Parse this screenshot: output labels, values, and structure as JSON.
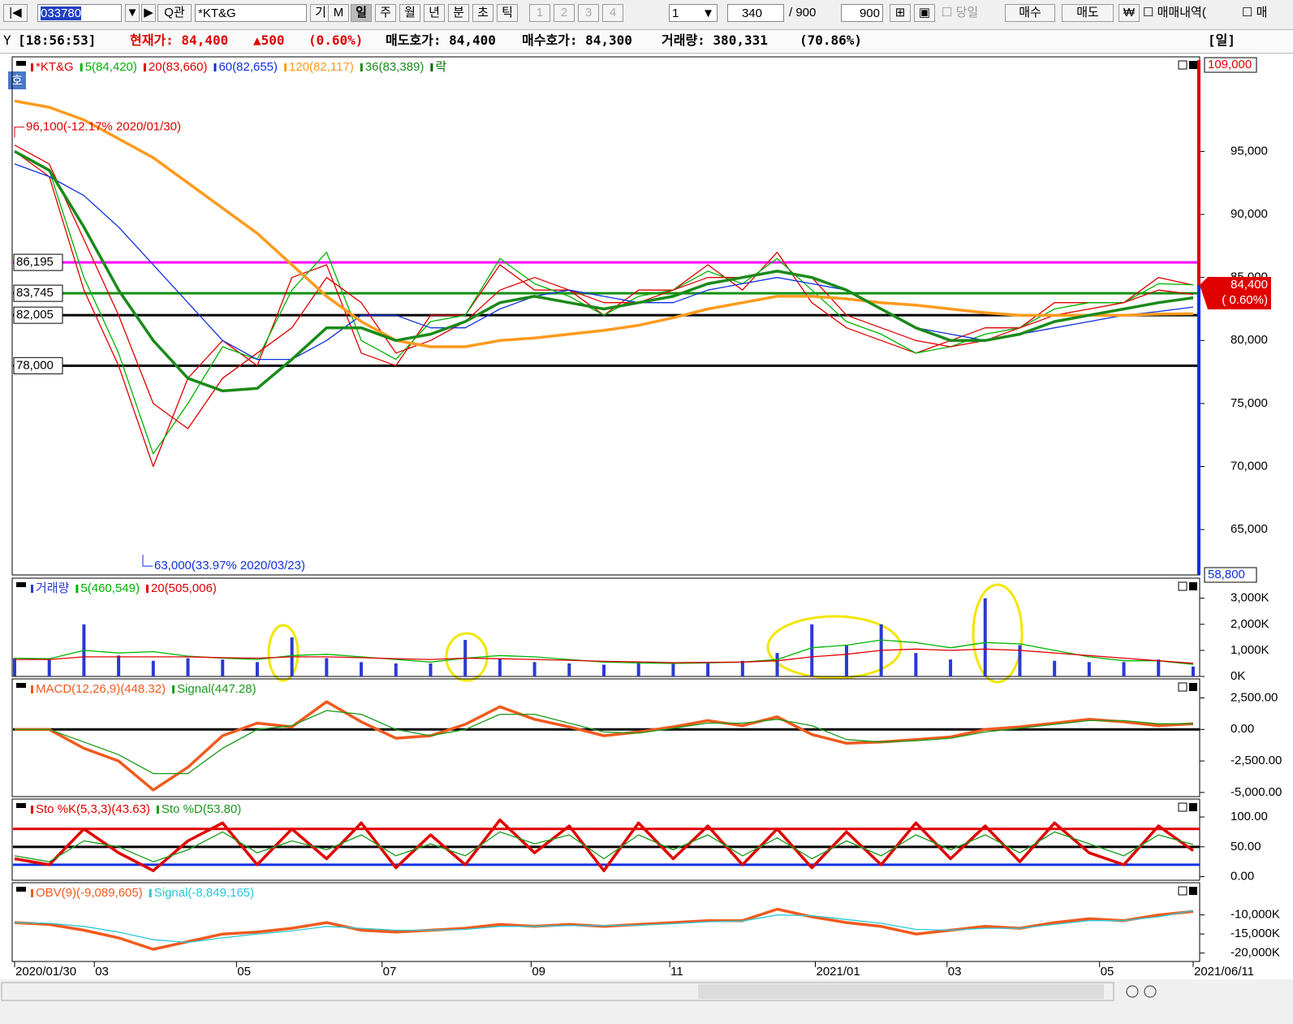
{
  "toolbar": {
    "code": "033780",
    "name": "*KT&G",
    "search": "관",
    "buttons": [
      "기",
      "M",
      "일",
      "주",
      "월",
      "년",
      "분",
      "초",
      "틱",
      "1",
      "2",
      "3",
      "4"
    ],
    "period": "1",
    "count": "340",
    "total": "/ 900",
    "total_box": "900",
    "today": "당일",
    "buy": "매수",
    "sell": "매도",
    "won": "₩",
    "history": "매매내역(",
    "history2": "매"
  },
  "info": {
    "time": "[18:56:53]",
    "price": "현재가: 84,400",
    "change": "▲500",
    "change_pct": "(0.60%)",
    "ask": "매도호가: 84,400",
    "bid": "매수호가: 84,300",
    "volume": "거래량: 380,331",
    "volume_pct": "(70.86%)",
    "period": "[일]"
  },
  "side_button": "호",
  "chart_data": {
    "type": "stock",
    "x": [
      0,
      10,
      20,
      30,
      40,
      50,
      60,
      70,
      80,
      90,
      100,
      110,
      120,
      130,
      140,
      150,
      160,
      170,
      180,
      190,
      200,
      210,
      220,
      230,
      240,
      250,
      260,
      270,
      280,
      290,
      300,
      310,
      320,
      330,
      340
    ],
    "xlim": [
      0,
      340
    ],
    "xticks": [
      {
        "value": 0,
        "label": "2020/01/30"
      },
      {
        "value": 23,
        "label": "03"
      },
      {
        "value": 64,
        "label": "05"
      },
      {
        "value": 106,
        "label": "07"
      },
      {
        "value": 149,
        "label": "09"
      },
      {
        "value": 189,
        "label": "11"
      },
      {
        "value": 231,
        "label": "2021/01"
      },
      {
        "value": 269,
        "label": "03"
      },
      {
        "value": 313,
        "label": "05"
      },
      {
        "value": 340,
        "label": "2021/06/11"
      }
    ],
    "panels": [
      {
        "type": "line",
        "ylim": [
          61400,
          102500
        ],
        "yticks": [
          {
            "value": 65000,
            "label": "65,000"
          },
          {
            "value": 70000,
            "label": "70,000"
          },
          {
            "value": 75000,
            "label": "75,000"
          },
          {
            "value": 80000,
            "label": "80,000"
          },
          {
            "value": 85000,
            "label": "85,000"
          },
          {
            "value": 90000,
            "label": "90,000"
          },
          {
            "value": 95000,
            "label": "95,000"
          }
        ],
        "range_labels": {
          "max": "109,000",
          "min": "58,800"
        },
        "series": [
          {
            "name": "*KT&G",
            "color": "#e00000",
            "values": [
              95000,
              93000,
              84000,
              78000,
              70000,
              77000,
              80000,
              78000,
              85000,
              86000,
              79000,
              78000,
              82000,
              82000,
              86000,
              84000,
              84000,
              82000,
              84000,
              84000,
              86000,
              84000,
              87000,
              83000,
              81000,
              80000,
              79000,
              80000,
              81000,
              81000,
              83000,
              83000,
              83000,
              85000,
              84400
            ]
          },
          {
            "name": "5(84,420)",
            "color": "#00b400",
            "values": [
              95000,
              93500,
              85000,
              79000,
              71000,
              75000,
              79500,
              78500,
              84000,
              87000,
              80000,
              78500,
              81500,
              82000,
              86500,
              84500,
              83500,
              82000,
              83500,
              84000,
              85500,
              84500,
              86500,
              84000,
              81500,
              80500,
              79000,
              79500,
              80500,
              81000,
              82500,
              83000,
              83000,
              84500,
              84420
            ]
          },
          {
            "name": "20(83,660)",
            "color": "#e00000",
            "values": [
              95500,
              94000,
              88000,
              82000,
              75000,
              73000,
              77000,
              79000,
              81000,
              85000,
              83000,
              79000,
              80000,
              81500,
              84000,
              85000,
              84000,
              83000,
              83000,
              84000,
              85000,
              85000,
              85500,
              85000,
              82000,
              81000,
              80000,
              79500,
              80000,
              81000,
              82000,
              82500,
              83000,
              84000,
              83660
            ]
          },
          {
            "name": "60(82,655)",
            "color": "#1030e0",
            "values": [
              94000,
              93000,
              91500,
              89000,
              86000,
              83000,
              80000,
              78500,
              78500,
              80000,
              82000,
              82000,
              81000,
              81000,
              82500,
              83500,
              84000,
              83500,
              83000,
              83000,
              84000,
              84500,
              85000,
              84500,
              84000,
              82500,
              81000,
              80500,
              80000,
              80500,
              81000,
              81500,
              82000,
              82300,
              82655
            ]
          },
          {
            "name": "120(82,117)",
            "color": "#ff9a1e",
            "thick": true,
            "values": [
              99000,
              98500,
              97500,
              96000,
              94500,
              92500,
              90500,
              88500,
              86000,
              83500,
              81500,
              80000,
              79500,
              79500,
              80000,
              80200,
              80500,
              80800,
              81200,
              81800,
              82500,
              83000,
              83500,
              83500,
              83300,
              83000,
              82800,
              82500,
              82200,
              82000,
              82000,
              82000,
              82000,
              82100,
              82117
            ]
          },
          {
            "name": "36(83,389)",
            "color": "#1a8a1a",
            "thick": true,
            "values": [
              95000,
              93500,
              89000,
              84000,
              80000,
              77000,
              76000,
              76200,
              78500,
              81000,
              81000,
              80000,
              80500,
              81500,
              83000,
              83500,
              83000,
              82500,
              83000,
              83500,
              84500,
              85000,
              85500,
              85000,
              84000,
              82500,
              81000,
              80000,
              80000,
              80500,
              81500,
              82000,
              82500,
              83000,
              83389
            ]
          }
        ],
        "legend_note": {
          "text": "락",
          "color": "#0a6a0a"
        },
        "hlines": [
          {
            "value": 86195,
            "label": "86,195",
            "color": "#ff00ff"
          },
          {
            "value": 83745,
            "label": "83,745",
            "color": "#109010"
          },
          {
            "value": 82005,
            "label": "82,005",
            "color": "#000000"
          },
          {
            "value": 78000,
            "label": "78,000",
            "color": "#000000"
          }
        ],
        "annotations": [
          {
            "text": "96,100(-12.17% 2020/01/30)",
            "x": 0,
            "value": 96100
          },
          {
            "text": "63,000(33.97% 2020/03/23)",
            "x": 37,
            "value": 63000
          }
        ],
        "price_tag": {
          "value": 84400,
          "label": "84,400",
          "note": "( 0.60%)"
        }
      },
      {
        "type": "line",
        "ylim": [
          0,
          3770
        ],
        "yticks": [
          {
            "value": 0,
            "label": "0K"
          },
          {
            "value": 1000,
            "label": "1,000K"
          },
          {
            "value": 2000,
            "label": "2,000K"
          },
          {
            "value": 3000,
            "label": "3,000K"
          }
        ],
        "series": [
          {
            "name": "거래량",
            "type": "bar",
            "color": "#2a3ad0",
            "values": [
              700,
              650,
              2000,
              800,
              600,
              700,
              650,
              550,
              1500,
              700,
              550,
              500,
              500,
              1400,
              700,
              550,
              500,
              450,
              550,
              500,
              550,
              600,
              900,
              2000,
              1200,
              2000,
              900,
              650,
              3000,
              1200,
              600,
              550,
              550,
              650,
              380
            ]
          },
          {
            "name": "5(460,549)",
            "color": "#00b400",
            "values": [
              700,
              680,
              1000,
              900,
              950,
              780,
              700,
              650,
              800,
              850,
              750,
              650,
              550,
              700,
              800,
              750,
              650,
              550,
              520,
              500,
              520,
              550,
              650,
              1100,
              1200,
              1400,
              1300,
              1100,
              1300,
              1250,
              1000,
              750,
              600,
              600,
              461
            ]
          },
          {
            "name": "20(505,006)",
            "color": "#e00000",
            "values": [
              650,
              650,
              750,
              750,
              750,
              750,
              720,
              700,
              750,
              750,
              720,
              680,
              650,
              700,
              680,
              650,
              620,
              580,
              560,
              530,
              540,
              550,
              600,
              750,
              850,
              1000,
              1050,
              1000,
              1050,
              1000,
              900,
              800,
              700,
              600,
              505
            ]
          }
        ]
      },
      {
        "type": "line",
        "ylim": [
          -5330,
          4010
        ],
        "yticks": [
          {
            "value": -5000,
            "label": "-5,000.00"
          },
          {
            "value": -2500,
            "label": "-2,500.00"
          },
          {
            "value": 0,
            "label": "0.00"
          },
          {
            "value": 2500,
            "label": "2,500.00"
          }
        ],
        "hlines": [
          {
            "value": 0,
            "color": "#000000"
          }
        ],
        "series": [
          {
            "name": "MACD(12,26,9)(448.32)",
            "color": "#f05a1e",
            "thick": true,
            "values": [
              0,
              0,
              -1500,
              -2500,
              -4800,
              -3000,
              -500,
              500,
              200,
              2200,
              600,
              -700,
              -500,
              400,
              1800,
              800,
              200,
              -500,
              -200,
              200,
              700,
              300,
              1000,
              -400,
              -1100,
              -1000,
              -800,
              -600,
              0,
              200,
              500,
              800,
              600,
              300,
              448.32
            ]
          },
          {
            "name": "Signal(447.28)",
            "color": "#1a9a1a",
            "values": [
              0,
              0,
              -1000,
              -2000,
              -3500,
              -3500,
              -1500,
              0,
              300,
              1500,
              1200,
              0,
              -500,
              0,
              1200,
              1200,
              500,
              -200,
              -300,
              100,
              500,
              500,
              800,
              300,
              -800,
              -1000,
              -900,
              -700,
              -200,
              100,
              400,
              700,
              700,
              450,
              447.28
            ]
          }
        ]
      },
      {
        "type": "line",
        "ylim": [
          -6,
          130
        ],
        "yticks": [
          {
            "value": 0,
            "label": "0.00"
          },
          {
            "value": 50,
            "label": "50.00"
          },
          {
            "value": 100,
            "label": "100.00"
          }
        ],
        "hlines": [
          {
            "value": 80,
            "color": "#e00000"
          },
          {
            "value": 50,
            "color": "#000000"
          },
          {
            "value": 20,
            "color": "#1030e0"
          }
        ],
        "series": [
          {
            "name": "Sto %K(5,3,3)(43.63)",
            "color": "#e00000",
            "thick": true,
            "values": [
              30,
              20,
              80,
              40,
              10,
              60,
              90,
              20,
              80,
              30,
              90,
              15,
              70,
              20,
              95,
              40,
              85,
              10,
              90,
              30,
              85,
              20,
              80,
              15,
              75,
              20,
              90,
              30,
              85,
              25,
              90,
              40,
              20,
              85,
              43.63
            ]
          },
          {
            "name": "Sto %D(53.80)",
            "color": "#1a9a1a",
            "values": [
              35,
              25,
              60,
              50,
              25,
              45,
              75,
              40,
              60,
              45,
              70,
              35,
              55,
              35,
              75,
              55,
              70,
              30,
              70,
              45,
              70,
              35,
              65,
              30,
              60,
              35,
              70,
              45,
              70,
              40,
              75,
              55,
              35,
              70,
              53.8
            ]
          }
        ]
      },
      {
        "type": "line",
        "ylim": [
          -22200,
          -1560
        ],
        "yticks": [
          {
            "value": -20000,
            "label": "-20,000K"
          },
          {
            "value": -15000,
            "label": "-15,000K"
          },
          {
            "value": -10000,
            "label": "-10,000K"
          }
        ],
        "series": [
          {
            "name": "OBV(9)(-9,089,605)",
            "color": "#f05a1e",
            "thick": true,
            "values": [
              -12000,
              -12500,
              -14000,
              -16000,
              -19000,
              -17000,
              -15000,
              -14500,
              -13500,
              -12000,
              -14000,
              -14500,
              -14000,
              -13500,
              -12500,
              -13000,
              -12500,
              -13000,
              -12500,
              -12000,
              -11500,
              -11500,
              -8500,
              -10500,
              -12000,
              -13000,
              -15000,
              -14000,
              -13000,
              -13500,
              -12000,
              -11000,
              -11500,
              -10000,
              -9089.605
            ]
          },
          {
            "name": "Signal(-8,849,165)",
            "color": "#28c8d8",
            "values": [
              -12000,
              -12200,
              -13000,
              -14500,
              -16500,
              -17200,
              -16000,
              -15000,
              -14200,
              -13000,
              -13500,
              -14000,
              -14000,
              -13800,
              -13000,
              -13000,
              -12800,
              -12800,
              -12700,
              -12300,
              -11800,
              -11600,
              -10000,
              -10200,
              -11200,
              -12200,
              -13800,
              -14000,
              -13500,
              -13500,
              -12500,
              -11500,
              -11500,
              -10500,
              -8849.165
            ]
          }
        ]
      }
    ]
  }
}
